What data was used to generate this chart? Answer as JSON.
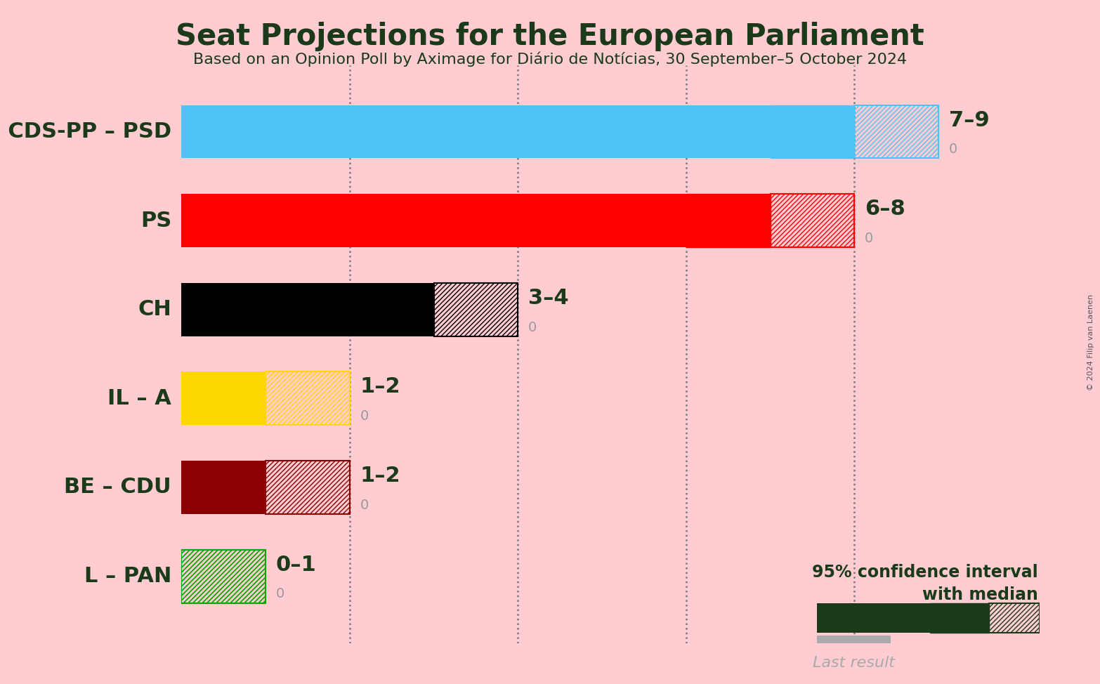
{
  "title": "Seat Projections for the European Parliament",
  "subtitle": "Based on an Opinion Poll by Aximage for Diário de Notícias, 30 September–5 October 2024",
  "background_color": "#FFCCD2",
  "parties": [
    "AD – CDS-PP – PSD",
    "PS",
    "CH",
    "IL – A",
    "BE – CDU",
    "L – PAN"
  ],
  "colors": [
    "#4FC3F7",
    "#FF0000",
    "#000000",
    "#FFD700",
    "#8B0000",
    "#00AA00"
  ],
  "low": [
    7,
    6,
    3,
    1,
    1,
    0
  ],
  "median": [
    8,
    7,
    3,
    1,
    1,
    0
  ],
  "high": [
    9,
    8,
    4,
    2,
    2,
    1
  ],
  "label": [
    "7–9",
    "6–8",
    "3–4",
    "1–2",
    "1–2",
    "0–1"
  ],
  "last_result": [
    0,
    0,
    0,
    0,
    0,
    0
  ],
  "xlim": [
    0,
    10.2
  ],
  "dotted_lines": [
    2,
    4,
    6,
    8
  ],
  "copyright": "© 2024 Filip van Laenen",
  "legend_text1": "95% confidence interval",
  "legend_text2": "with median",
  "legend_last": "Last result",
  "dark_green": "#1a3a1a",
  "gray_text": "#999999",
  "legend_bar_dark_green": "#1a3a1a",
  "legend_gray": "#aaaaaa"
}
